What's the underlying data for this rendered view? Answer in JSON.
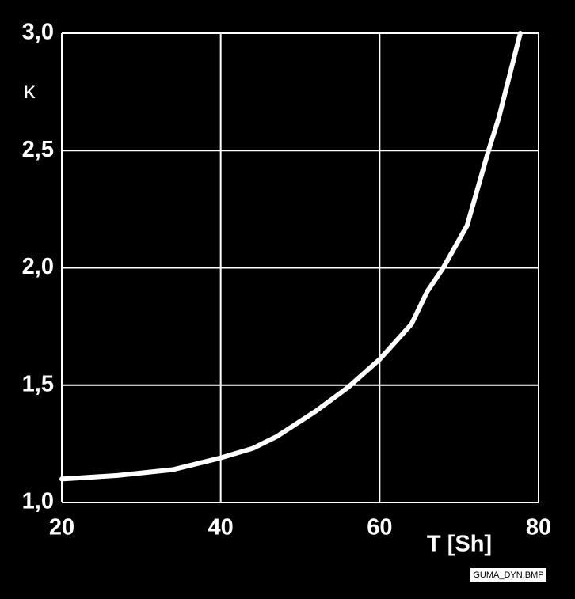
{
  "chart_data": {
    "type": "line",
    "xlabel": "T [Sh]",
    "ylabel": "κ",
    "x": [
      20,
      27,
      34,
      40,
      44,
      47,
      52,
      56,
      60,
      64,
      66,
      68,
      71,
      73.7,
      75,
      77.7
    ],
    "series": [
      {
        "color": "#ffffff",
        "values": [
          1.1,
          1.115,
          1.14,
          1.19,
          1.23,
          1.28,
          1.39,
          1.49,
          1.61,
          1.76,
          1.9,
          2.0,
          2.18,
          2.5,
          2.64,
          3.0
        ]
      }
    ],
    "xlim": [
      20,
      80
    ],
    "xticks": [
      20,
      40,
      60,
      80
    ],
    "ylim": [
      1,
      3
    ],
    "yticks": [
      {
        "value": 1,
        "label": "1,0"
      },
      {
        "value": 1.5,
        "label": "1,5"
      },
      {
        "value": 2,
        "label": "2,0"
      },
      {
        "value": 2.5,
        "label": "2,5"
      },
      {
        "value": 3,
        "label": "3,0"
      }
    ],
    "grid": true,
    "annotations": [
      "GUMA_DYN.BMP"
    ]
  }
}
